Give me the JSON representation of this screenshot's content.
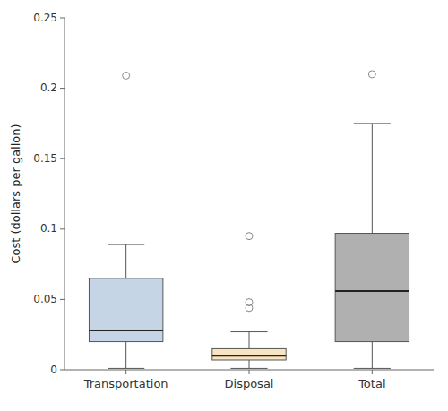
{
  "chart_data": {
    "type": "box",
    "categories": [
      "Transportation",
      "Disposal",
      "Total"
    ],
    "boxes": [
      {
        "med": 0.028,
        "q1": 0.02,
        "q3": 0.065,
        "whislo": 0.001,
        "whishi": 0.089,
        "fliers": [
          0.209
        ]
      },
      {
        "med": 0.01,
        "q1": 0.007,
        "q3": 0.015,
        "whislo": 0.001,
        "whishi": 0.027,
        "fliers": [
          0.044,
          0.048,
          0.095
        ]
      },
      {
        "med": 0.056,
        "q1": 0.02,
        "q3": 0.097,
        "whislo": 0.001,
        "whishi": 0.175,
        "fliers": [
          0.21
        ]
      }
    ],
    "colors": [
      "#c5d5e6",
      "#f8e4c0",
      "#b0b0b0"
    ],
    "ylabel": "Cost (dollars per gallon)",
    "ylim": [
      0,
      0.25
    ],
    "yticks": [
      0,
      0.05,
      0.1,
      0.15,
      0.2,
      0.25
    ],
    "grid": false
  }
}
